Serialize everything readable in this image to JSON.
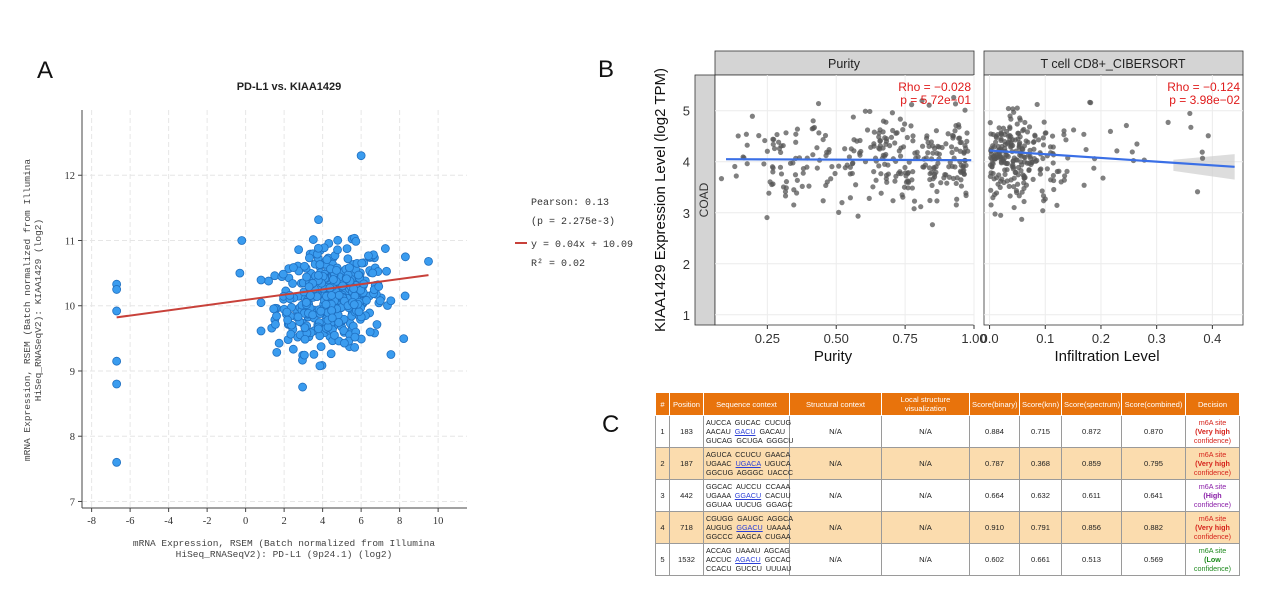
{
  "panel_labels": {
    "a": "A",
    "b": "B",
    "c": "C"
  },
  "chart_data": [
    {
      "type": "scatter",
      "panel": "A",
      "title": "PD-L1 vs. KIAA1429",
      "xlabel_lines": [
        "mRNA Expression, RSEM (Batch normalized from Illumina",
        "HiSeq_RNASeqV2): PD-L1 (9p24.1) (log2)"
      ],
      "ylabel_lines": [
        "mRNA Expression, RSEM (Batch normalized from Illumina",
        "HiSeq_RNASeqV2): KIAA1429 (log2)"
      ],
      "xlim": [
        -8.5,
        11.5
      ],
      "ylim": [
        6.9,
        13.0
      ],
      "xticks": [
        -8,
        -6,
        -4,
        -2,
        0,
        2,
        4,
        6,
        8,
        10
      ],
      "yticks": [
        7,
        8,
        9,
        10,
        11,
        12
      ],
      "grid": true,
      "point_color": "#3a9cef",
      "point_edge": "#1f6fc0",
      "line_color": "#c8413a",
      "fit": {
        "slope": 0.04,
        "intercept": 10.09,
        "x_range": [
          -6.7,
          9.5
        ]
      },
      "legend": {
        "pearson": "Pearson: 0.13",
        "pvalue": "(p = 2.275e-3)",
        "equation": "y = 0.04x + 10.09",
        "r2": "R² = 0.02"
      },
      "legend_position": "right",
      "outliers": [
        [
          -6.7,
          10.33
        ],
        [
          -6.7,
          10.25
        ],
        [
          -6.7,
          9.92
        ],
        [
          -6.7,
          9.15
        ],
        [
          -6.7,
          8.8
        ],
        [
          -6.7,
          7.6
        ],
        [
          6.0,
          12.3
        ],
        [
          -0.2,
          11.0
        ],
        [
          -0.3,
          10.5
        ],
        [
          9.5,
          10.68
        ],
        [
          8.3,
          10.75
        ]
      ]
    },
    {
      "type": "scatter",
      "panel": "B",
      "ylabel": "KIAA1429 Expression Level (log2 TPM)",
      "strip_label": "COAD",
      "point_color": "#555555",
      "line_color": "#3a6fe6",
      "ylim": [
        0.8,
        5.7
      ],
      "yticks": [
        1,
        2,
        3,
        4,
        5
      ],
      "facets": [
        {
          "title": "Purity",
          "xlabel": "Purity",
          "xlim": [
            0.06,
            1.0
          ],
          "xticks": [
            0.25,
            0.5,
            0.75,
            1.0
          ],
          "xtick_labels": [
            "0.25",
            "0.50",
            "0.75",
            "1.00"
          ],
          "rho": "Rho = −0.028",
          "p": "p = 5.72e−01",
          "fit": {
            "x0": 0.1,
            "y0": 4.05,
            "x1": 0.99,
            "y1": 4.03
          }
        },
        {
          "title": "T cell CD8+_CIBERSORT",
          "xlabel": "Infiltration Level",
          "xlim": [
            -0.01,
            0.455
          ],
          "xticks": [
            0.0,
            0.1,
            0.2,
            0.3,
            0.4
          ],
          "xtick_labels": [
            "0.0",
            "0.1",
            "0.2",
            "0.3",
            "0.4"
          ],
          "rho": "Rho = −0.124",
          "p": "p = 3.98e−02",
          "fit": {
            "x0": 0.0,
            "y0": 4.22,
            "x1": 0.44,
            "y1": 3.9
          }
        }
      ]
    },
    {
      "type": "table",
      "panel": "C",
      "columns": [
        "#",
        "Position",
        "Sequence context",
        "Structural context",
        "Local structure visualization",
        "Score(binary)",
        "Score(knn)",
        "Score(spectrum)",
        "Score(combined)",
        "Decision"
      ],
      "rows": [
        {
          "n": "1",
          "pos": "183",
          "seq": [
            [
              "AUCCA",
              "GUCAC",
              "CUCUG"
            ],
            [
              "AACAU",
              "GACU",
              "GACAU"
            ],
            [
              "GUCAG",
              "GCUGA",
              "GGGCU"
            ]
          ],
          "struct": "N/A",
          "local": "N/A",
          "binary": "0.884",
          "knn": "0.715",
          "spectrum": "0.872",
          "combined": "0.870",
          "decision": [
            "m6A site",
            "(Very high",
            "confidence)"
          ],
          "color": "#d6241c"
        },
        {
          "n": "2",
          "pos": "187",
          "seq": [
            [
              "AGUCA",
              "CCUCU",
              "GAACA"
            ],
            [
              "UGAAC",
              "UGACA",
              "UGUCA"
            ],
            [
              "GGCUG",
              "AGGGC",
              "UACCC"
            ]
          ],
          "struct": "N/A",
          "local": "N/A",
          "binary": "0.787",
          "knn": "0.368",
          "spectrum": "0.859",
          "combined": "0.795",
          "decision": [
            "m6A site",
            "(Very high",
            "confidence)"
          ],
          "color": "#d6241c"
        },
        {
          "n": "3",
          "pos": "442",
          "seq": [
            [
              "GGCAC",
              "AUCCU",
              "CCAAA"
            ],
            [
              "UGAAA",
              "GGACU",
              "CACUU"
            ],
            [
              "GGUAA",
              "UUCUG",
              "GGAGC"
            ]
          ],
          "struct": "N/A",
          "local": "N/A",
          "binary": "0.664",
          "knn": "0.632",
          "spectrum": "0.611",
          "combined": "0.641",
          "decision": [
            "m6A site",
            "(High",
            "confidence)"
          ],
          "color": "#8a1ea8"
        },
        {
          "n": "4",
          "pos": "718",
          "seq": [
            [
              "CGUGG",
              "GAUGC",
              "AGGCA"
            ],
            [
              "AUGUG",
              "GGACU",
              "UAAAA"
            ],
            [
              "GGCCC",
              "AAGCA",
              "CUGAA"
            ]
          ],
          "struct": "N/A",
          "local": "N/A",
          "binary": "0.910",
          "knn": "0.791",
          "spectrum": "0.856",
          "combined": "0.882",
          "decision": [
            "m6A site",
            "(Very high",
            "confidence)"
          ],
          "color": "#d6241c"
        },
        {
          "n": "5",
          "pos": "1532",
          "seq": [
            [
              "ACCAG",
              "UAAAU",
              "AGCAG"
            ],
            [
              "ACCUC",
              "AGACU",
              "GCCAC"
            ],
            [
              "CCACU",
              "GUCCU",
              "UUUAU"
            ]
          ],
          "struct": "N/A",
          "local": "N/A",
          "binary": "0.602",
          "knn": "0.661",
          "spectrum": "0.513",
          "combined": "0.569",
          "decision": [
            "m6A site",
            "(Low",
            "confidence)"
          ],
          "color": "#1e8a1e"
        }
      ]
    }
  ]
}
